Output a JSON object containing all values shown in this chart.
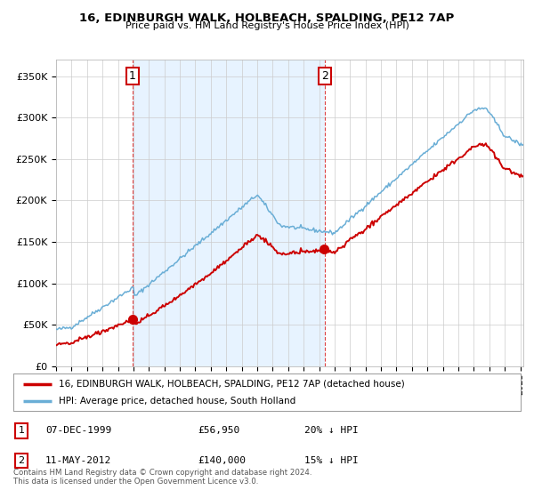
{
  "title": "16, EDINBURGH WALK, HOLBEACH, SPALDING, PE12 7AP",
  "subtitle": "Price paid vs. HM Land Registry's House Price Index (HPI)",
  "ylabel_ticks": [
    "£0",
    "£50K",
    "£100K",
    "£150K",
    "£200K",
    "£250K",
    "£300K",
    "£350K"
  ],
  "ytick_values": [
    0,
    50000,
    100000,
    150000,
    200000,
    250000,
    300000,
    350000
  ],
  "ylim": [
    0,
    370000
  ],
  "xlim_start": 1995.0,
  "xlim_end": 2025.2,
  "sale1_x": 1999.93,
  "sale1_price": 56950,
  "sale2_x": 2012.36,
  "sale2_price": 140000,
  "legend_line1": "16, EDINBURGH WALK, HOLBEACH, SPALDING, PE12 7AP (detached house)",
  "legend_line2": "HPI: Average price, detached house, South Holland",
  "footnote": "Contains HM Land Registry data © Crown copyright and database right 2024.\nThis data is licensed under the Open Government Licence v3.0.",
  "table_rows": [
    {
      "num": "1",
      "date": "07-DEC-1999",
      "price": "£56,950",
      "hpi": "20% ↓ HPI"
    },
    {
      "num": "2",
      "date": "11-MAY-2012",
      "price": "£140,000",
      "hpi": "15% ↓ HPI"
    }
  ],
  "red_color": "#cc0000",
  "blue_color": "#6aaed6",
  "shade_color": "#ddeeff",
  "vline_color": "#dd4444",
  "background_color": "#ffffff",
  "grid_color": "#cccccc"
}
